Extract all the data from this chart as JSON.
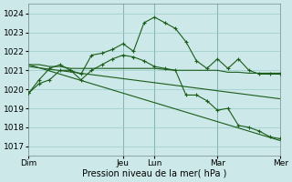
{
  "title": "Pression niveau de la mer( hPa )",
  "bg_color": "#cce8e8",
  "grid_color": "#99cccc",
  "line_color": "#1a5c1a",
  "ylim": [
    1016.5,
    1024.5
  ],
  "yticks": [
    1017,
    1018,
    1019,
    1020,
    1021,
    1022,
    1023,
    1024
  ],
  "xtick_labels": [
    "Dim",
    "Jeu",
    "Lun",
    "Mar",
    "Mer"
  ],
  "xtick_positions": [
    0,
    9,
    12,
    18,
    24
  ],
  "vline_positions": [
    9,
    12,
    18,
    24
  ],
  "n_points": 25,
  "line1_x": [
    0,
    1,
    2,
    3,
    4,
    5,
    6,
    7,
    8,
    9,
    10,
    11,
    12,
    13,
    14,
    15,
    16,
    17,
    18,
    19,
    20,
    21,
    22,
    23,
    24
  ],
  "line1_y": [
    1019.8,
    1020.5,
    1021.1,
    1021.3,
    1021.0,
    1020.8,
    1021.8,
    1021.9,
    1022.1,
    1022.4,
    1022.0,
    1023.5,
    1023.8,
    1023.5,
    1023.2,
    1022.5,
    1021.5,
    1021.1,
    1021.6,
    1021.1,
    1021.6,
    1021.0,
    1020.8,
    1020.8,
    1020.8
  ],
  "line2_x": [
    0,
    1,
    2,
    3,
    4,
    5,
    6,
    7,
    8,
    9,
    10,
    11,
    12,
    13,
    14,
    15,
    16,
    17,
    18,
    19,
    20,
    21,
    22,
    23,
    24
  ],
  "line2_y": [
    1021.3,
    1021.3,
    1021.2,
    1021.2,
    1021.1,
    1021.1,
    1021.1,
    1021.1,
    1021.1,
    1021.1,
    1021.1,
    1021.1,
    1021.1,
    1021.05,
    1021.0,
    1021.0,
    1021.0,
    1021.0,
    1021.0,
    1020.9,
    1020.9,
    1020.85,
    1020.85,
    1020.85,
    1020.85
  ],
  "line3_x": [
    0,
    24
  ],
  "line3_y": [
    1021.3,
    1017.3
  ],
  "line4_x": [
    0,
    24
  ],
  "line4_y": [
    1021.2,
    1019.5
  ],
  "line5_x": [
    0,
    1,
    2,
    3,
    4,
    5,
    6,
    7,
    8,
    9,
    10,
    11,
    12,
    13,
    14,
    15,
    16,
    17,
    18,
    19,
    20,
    21,
    22,
    23,
    24
  ],
  "line5_y": [
    1019.8,
    1020.3,
    1020.5,
    1021.0,
    1021.0,
    1020.5,
    1021.0,
    1021.3,
    1021.6,
    1021.8,
    1021.7,
    1021.5,
    1021.2,
    1021.1,
    1021.0,
    1019.7,
    1019.7,
    1019.4,
    1018.9,
    1019.0,
    1018.1,
    1018.0,
    1017.8,
    1017.5,
    1017.4
  ],
  "xlabel_fontsize": 6.5,
  "ylabel_fontsize": 6.5,
  "title_fontsize": 7
}
